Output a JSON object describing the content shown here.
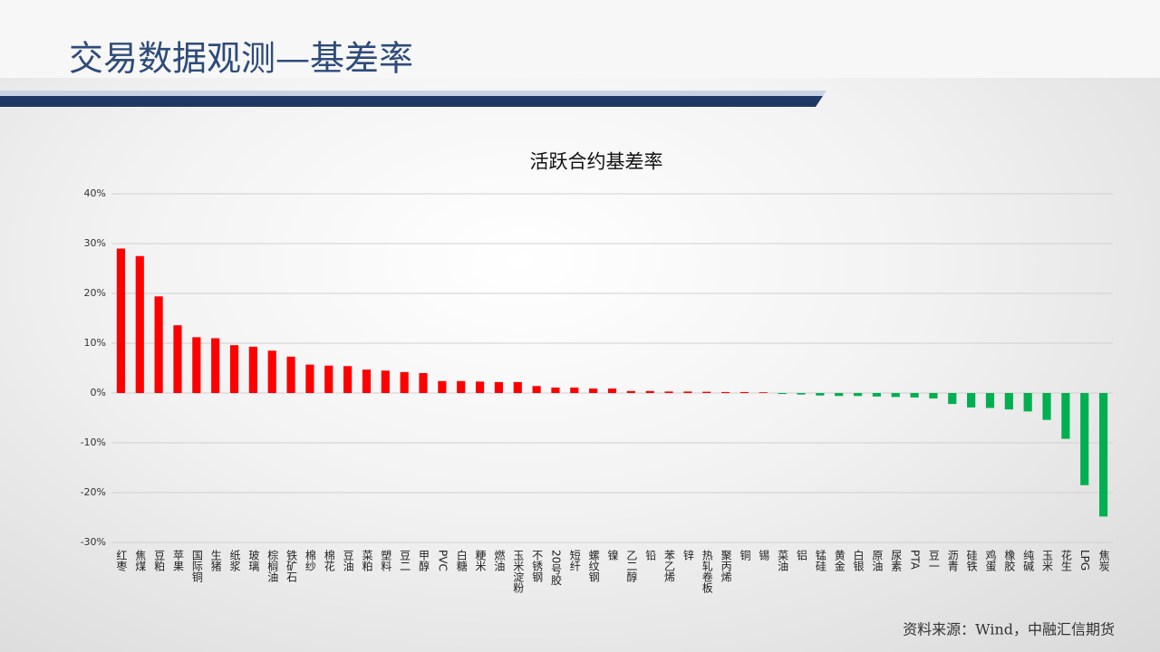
{
  "header": {
    "title": "交易数据观测—基差率"
  },
  "chart_data": {
    "type": "bar",
    "title": "活跃合约基差率",
    "categories": [
      "红枣",
      "焦煤",
      "豆粕",
      "苹果",
      "国际铜",
      "生猪",
      "纸浆",
      "玻璃",
      "棕榈油",
      "铁矿石",
      "棉纱",
      "棉花",
      "豆油",
      "菜粕",
      "塑料",
      "豆二",
      "甲醇",
      "PVC",
      "白糖",
      "粳米",
      "燃油",
      "玉米淀粉",
      "不锈钢",
      "20号胶",
      "短纤",
      "螺纹钢",
      "镍",
      "乙二醇",
      "铅",
      "苯乙烯",
      "锌",
      "热轧卷板",
      "聚丙烯",
      "铜",
      "锡",
      "菜油",
      "铝",
      "锰硅",
      "黄金",
      "白银",
      "原油",
      "尿素",
      "PTA",
      "豆一",
      "沥青",
      "硅铁",
      "鸡蛋",
      "橡胶",
      "纯碱",
      "玉米",
      "花生",
      "LPG",
      "焦炭"
    ],
    "values": [
      29.0,
      27.5,
      19.4,
      13.6,
      11.2,
      11.0,
      9.6,
      9.3,
      8.5,
      7.3,
      5.7,
      5.5,
      5.4,
      4.7,
      4.5,
      4.2,
      4.0,
      2.4,
      2.4,
      2.3,
      2.2,
      2.2,
      1.4,
      1.1,
      1.1,
      0.9,
      0.9,
      0.4,
      0.4,
      0.3,
      0.3,
      0.25,
      0.2,
      0.2,
      0.15,
      -0.2,
      -0.3,
      -0.5,
      -0.6,
      -0.6,
      -0.7,
      -0.8,
      -0.9,
      -1.1,
      -2.2,
      -2.9,
      -3.0,
      -3.3,
      -3.7,
      -5.4,
      -9.2,
      -18.5,
      -24.8
    ],
    "positive_color": "#ff0000",
    "negative_color": "#00b050",
    "ylim": [
      -30,
      40
    ],
    "yticks": [
      {
        "value": -30,
        "label": "-30%"
      },
      {
        "value": -20,
        "label": "-20%"
      },
      {
        "value": -10,
        "label": "-10%"
      },
      {
        "value": 0,
        "label": "0%"
      },
      {
        "value": 10,
        "label": "10%"
      },
      {
        "value": 20,
        "label": "20%"
      },
      {
        "value": 30,
        "label": "30%"
      },
      {
        "value": 40,
        "label": "40%"
      }
    ],
    "grid": true
  },
  "footer": {
    "source": "资料来源：Wind，中融汇信期货"
  }
}
